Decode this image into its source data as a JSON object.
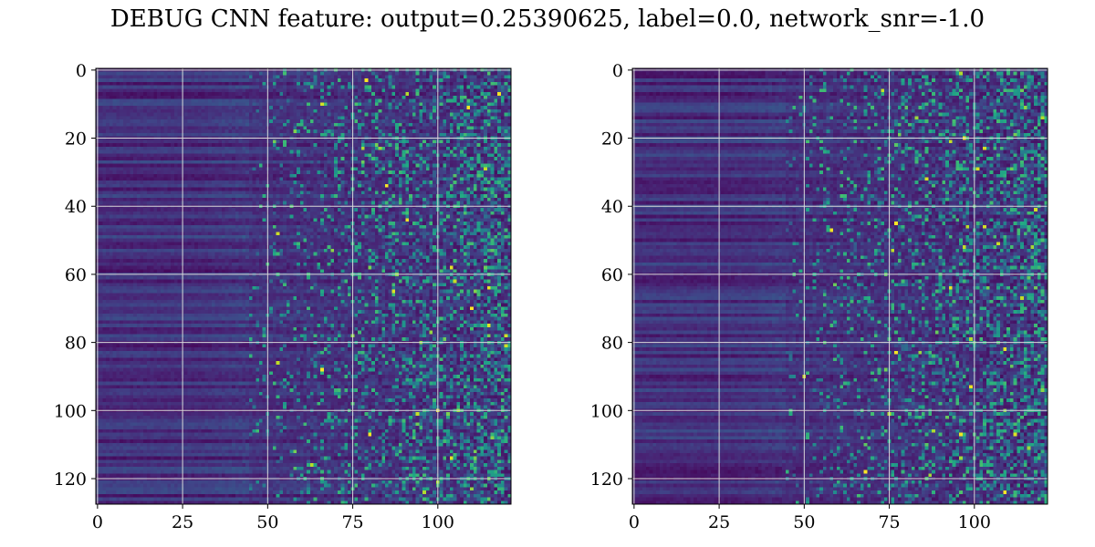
{
  "title": "DEBUG CNN feature: output=0.25390625, label=0.0, network_snr=-1.0",
  "chart_data": [
    {
      "type": "heatmap",
      "colormap": "viridis",
      "rows": 128,
      "cols": 122,
      "xlim": [
        -0.5,
        121.5
      ],
      "ylim": [
        127.5,
        -0.5
      ],
      "xticks": [
        0,
        25,
        50,
        75,
        100
      ],
      "yticks": [
        0,
        20,
        40,
        60,
        80,
        100,
        120
      ],
      "grid": true,
      "grid_color": "#d9d9d9",
      "values_description": "dense dark-purple (low) region for columns 0-45 with faint horizontal banding; sparse noisy bright (green/yellow) values increasing toward columns 60-121"
    },
    {
      "type": "heatmap",
      "colormap": "viridis",
      "rows": 128,
      "cols": 122,
      "xlim": [
        -0.5,
        121.5
      ],
      "ylim": [
        127.5,
        -0.5
      ],
      "xticks": [
        0,
        25,
        50,
        75,
        100
      ],
      "yticks": [
        0,
        20,
        40,
        60,
        80,
        100,
        120
      ],
      "grid": true,
      "grid_color": "#d9d9d9",
      "values_description": "dense dark-purple (low) region for columns 0-45 with faint horizontal banding; sparse noisy bright (green/yellow) values increasing toward columns 60-121"
    }
  ]
}
